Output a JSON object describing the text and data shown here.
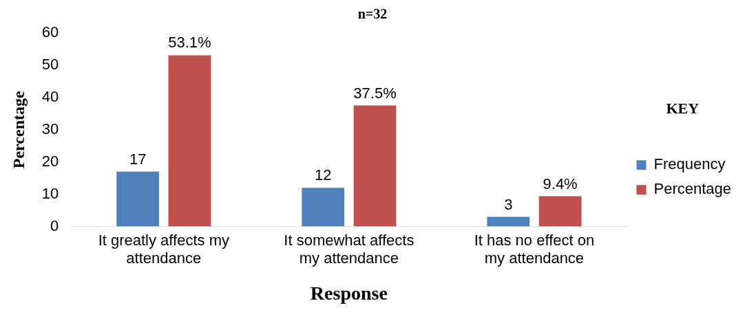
{
  "chart_data": {
    "type": "bar",
    "title": "n=32",
    "xlabel": "Response",
    "ylabel": "Percentage",
    "legend_title": "KEY",
    "categories": [
      "It greatly affects my attendance",
      "It somewhat affects my attendance",
      "It has no effect on my attendance"
    ],
    "series": [
      {
        "name": "Frequency",
        "color": "#4f81bd",
        "values": [
          17,
          12,
          3
        ],
        "value_labels": [
          "17",
          "12",
          "3"
        ]
      },
      {
        "name": "Percentage",
        "color": "#c0504d",
        "values": [
          53.1,
          37.5,
          9.4
        ],
        "value_labels": [
          "53.1%",
          "37.5%",
          "9.4%"
        ]
      }
    ],
    "ylim": [
      0,
      60
    ],
    "yticks": [
      0,
      10,
      20,
      30,
      40,
      50,
      60
    ],
    "grid": false,
    "legend": "right"
  }
}
